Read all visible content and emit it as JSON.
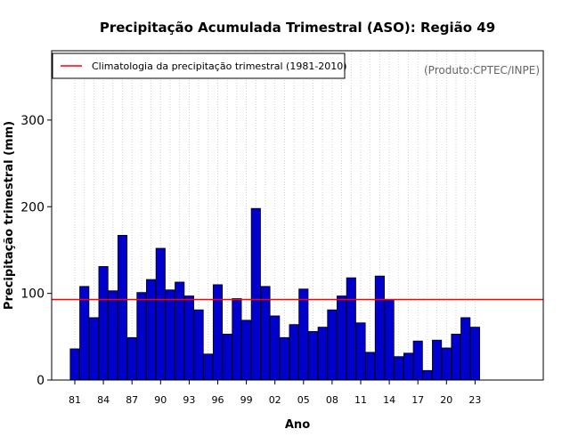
{
  "chart_data": {
    "type": "bar",
    "title": "Precipitação Acumulada Trimestral (ASO): Região 49",
    "xlabel": "Ano",
    "ylabel": "Precipitação trimestral (mm)",
    "ylim": [
      0,
      380
    ],
    "yticks": [
      0,
      100,
      200,
      300
    ],
    "grid": "vertical dotted lines at each year",
    "legend_position": "top-left",
    "legend": [
      {
        "label": "Climatologia da precipitação trimestral (1981-2010)",
        "color": "#ff0000"
      }
    ],
    "source_note": "(Produto:CPTEC/INPE)",
    "bar_color": "#0000cc",
    "climatology_value": 93,
    "years": [
      1981,
      1982,
      1983,
      1984,
      1985,
      1986,
      1987,
      1988,
      1989,
      1990,
      1991,
      1992,
      1993,
      1994,
      1995,
      1996,
      1997,
      1998,
      1999,
      2000,
      2001,
      2002,
      2003,
      2004,
      2005,
      2006,
      2007,
      2008,
      2009,
      2010,
      2011,
      2012,
      2013,
      2014,
      2015,
      2016,
      2017,
      2018,
      2019,
      2020,
      2021,
      2022,
      2023
    ],
    "values": [
      36,
      108,
      72,
      131,
      103,
      167,
      49,
      101,
      116,
      152,
      104,
      113,
      97,
      81,
      30,
      110,
      53,
      94,
      69,
      198,
      108,
      74,
      49,
      64,
      105,
      56,
      61,
      81,
      97,
      118,
      66,
      32,
      120,
      93,
      27,
      31,
      45,
      11,
      46,
      37,
      53,
      72,
      61
    ],
    "tick_labels": [
      "81",
      "84",
      "87",
      "90",
      "93",
      "96",
      "99",
      "02",
      "05",
      "08",
      "11",
      "14",
      "17",
      "20",
      "23"
    ],
    "tick_years": [
      1981,
      1984,
      1987,
      1990,
      1993,
      1996,
      1999,
      2002,
      2005,
      2008,
      2011,
      2014,
      2017,
      2020,
      2023
    ]
  }
}
